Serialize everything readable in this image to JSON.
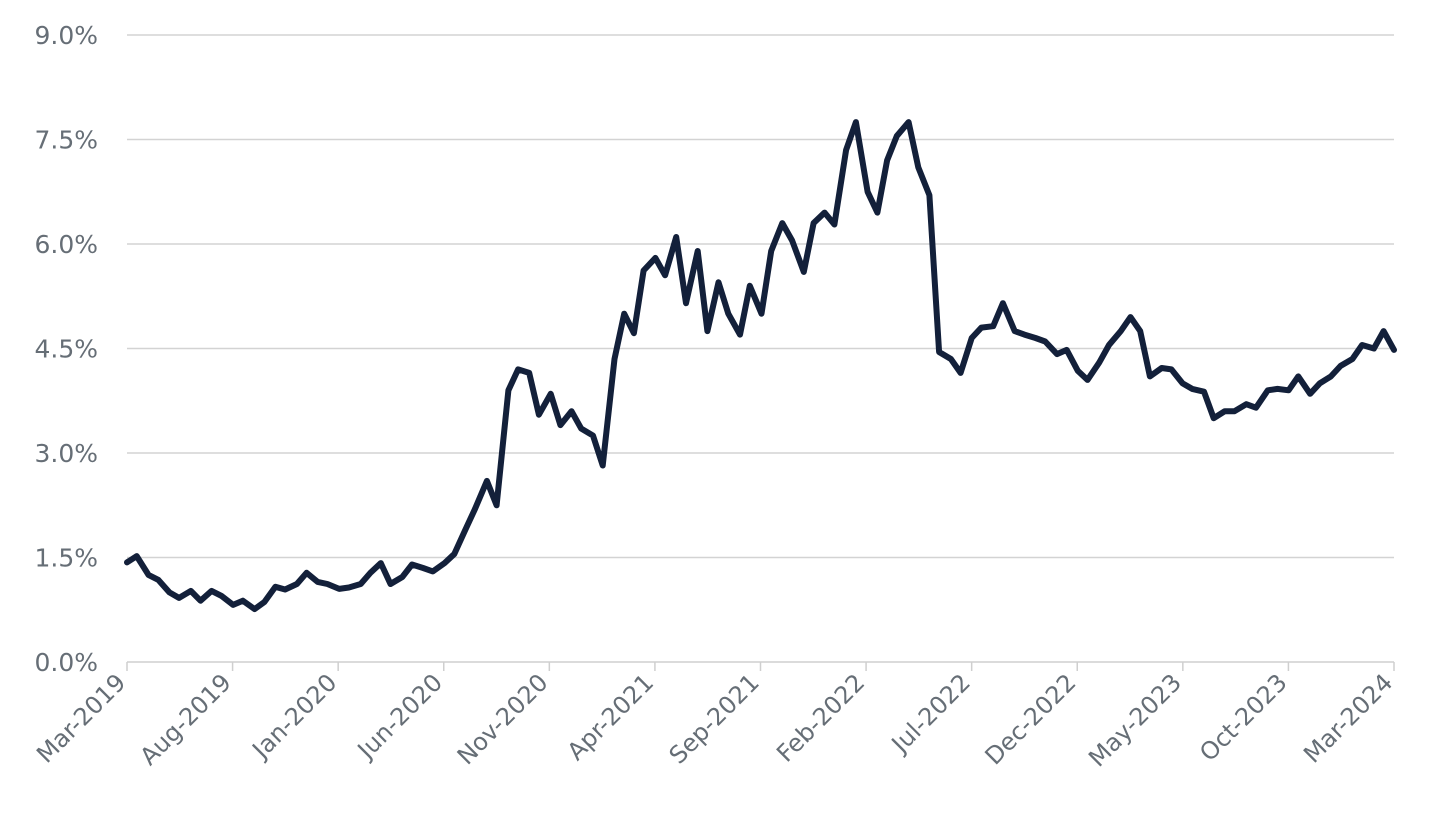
{
  "chart_data": {
    "type": "line",
    "title": "",
    "xlabel": "",
    "ylabel": "",
    "ylim": [
      0,
      9
    ],
    "x_tick_labels": [
      "Mar-2019",
      "Aug-2019",
      "Jan-2020",
      "Jun-2020",
      "Nov-2020",
      "Apr-2021",
      "Sep-2021",
      "Feb-2022",
      "Jul-2022",
      "Dec-2022",
      "May-2023",
      "Oct-2023",
      "Mar-2024"
    ],
    "y_tick_labels": [
      "0.0%",
      "1.5%",
      "3.0%",
      "4.5%",
      "6.0%",
      "7.5%",
      "9.0%"
    ],
    "y_tick_values": [
      0,
      1.5,
      3,
      4.5,
      6,
      7.5,
      9
    ],
    "grid": true,
    "legend": "none",
    "line_color": "#13203a",
    "series": [
      {
        "x": [
          "2019-03-01",
          "2019-03-15",
          "2019-04-01",
          "2019-04-15",
          "2019-05-01",
          "2019-05-15",
          "2019-06-01",
          "2019-06-15",
          "2019-07-01",
          "2019-07-15",
          "2019-08-01",
          "2019-08-15",
          "2019-09-01",
          "2019-09-15",
          "2019-10-01",
          "2019-10-15",
          "2019-11-01",
          "2019-11-15",
          "2019-12-01",
          "2019-12-15",
          "2020-01-01",
          "2020-01-15",
          "2020-02-01",
          "2020-02-15",
          "2020-03-01",
          "2020-03-15",
          "2020-04-01",
          "2020-04-15",
          "2020-05-01",
          "2020-05-15",
          "2020-06-01",
          "2020-06-15",
          "2020-07-01",
          "2020-07-15",
          "2020-08-01",
          "2020-08-15",
          "2020-09-01",
          "2020-09-15",
          "2020-10-01",
          "2020-10-15",
          "2020-11-01",
          "2020-11-15",
          "2020-12-01",
          "2020-12-15",
          "2021-01-01",
          "2021-01-15",
          "2021-02-01",
          "2021-02-15",
          "2021-03-01",
          "2021-03-15",
          "2021-04-01",
          "2021-04-15",
          "2021-05-01",
          "2021-05-15",
          "2021-06-01",
          "2021-06-15",
          "2021-07-01",
          "2021-07-15",
          "2021-08-01",
          "2021-08-15",
          "2021-09-01",
          "2021-09-15",
          "2021-10-01",
          "2021-10-15",
          "2021-11-01",
          "2021-11-15",
          "2021-12-01",
          "2021-12-15",
          "2022-01-01",
          "2022-01-15",
          "2022-02-01",
          "2022-02-15",
          "2022-03-01",
          "2022-03-15",
          "2022-04-01",
          "2022-04-15",
          "2022-05-01",
          "2022-05-15",
          "2022-06-01",
          "2022-06-15",
          "2022-07-01",
          "2022-07-15",
          "2022-08-01",
          "2022-08-15",
          "2022-09-01",
          "2022-09-15",
          "2022-10-01",
          "2022-10-15",
          "2022-11-01",
          "2022-11-15",
          "2022-12-01",
          "2022-12-15",
          "2023-01-01",
          "2023-01-15",
          "2023-02-01",
          "2023-02-15",
          "2023-03-01",
          "2023-03-15",
          "2023-04-01",
          "2023-04-15",
          "2023-05-01",
          "2023-05-15",
          "2023-06-01",
          "2023-06-15",
          "2023-07-01",
          "2023-07-15",
          "2023-08-01",
          "2023-08-15",
          "2023-09-01",
          "2023-09-15",
          "2023-10-01",
          "2023-10-15",
          "2023-11-01",
          "2023-11-15",
          "2023-12-01",
          "2023-12-15",
          "2024-01-01",
          "2024-01-15",
          "2024-02-01",
          "2024-02-15",
          "2024-03-01"
        ],
        "y": [
          1.43,
          1.52,
          1.25,
          1.18,
          1.0,
          0.92,
          1.02,
          0.88,
          1.02,
          0.95,
          0.82,
          0.88,
          0.76,
          0.86,
          1.08,
          1.04,
          1.12,
          1.28,
          1.15,
          1.12,
          1.05,
          1.07,
          1.12,
          1.28,
          1.42,
          1.12,
          1.22,
          1.4,
          1.35,
          1.3,
          1.42,
          1.55,
          1.9,
          2.2,
          2.6,
          2.25,
          3.9,
          4.2,
          4.15,
          3.55,
          3.85,
          3.4,
          3.6,
          3.35,
          3.25,
          2.82,
          4.35,
          5.0,
          4.72,
          5.62,
          5.8,
          5.55,
          6.1,
          5.15,
          5.9,
          4.75,
          5.45,
          5.0,
          4.7,
          5.4,
          5.0,
          5.9,
          6.3,
          6.05,
          5.6,
          6.3,
          6.45,
          6.28,
          7.35,
          7.75,
          6.75,
          6.45,
          7.2,
          7.55,
          7.75,
          7.1,
          6.7,
          4.45,
          4.35,
          4.15,
          4.65,
          4.8,
          4.82,
          5.15,
          4.75,
          4.7,
          4.65,
          4.6,
          4.42,
          4.48,
          4.18,
          4.05,
          4.3,
          4.55,
          4.75,
          4.95,
          4.75,
          4.1,
          4.22,
          4.2,
          4.0,
          3.92,
          3.88,
          3.5,
          3.6,
          3.6,
          3.7,
          3.65,
          3.9,
          3.92,
          3.9,
          4.1,
          3.85,
          4.0,
          4.1,
          4.25,
          4.35,
          4.55,
          4.5,
          4.75,
          4.48
        ]
      }
    ]
  }
}
